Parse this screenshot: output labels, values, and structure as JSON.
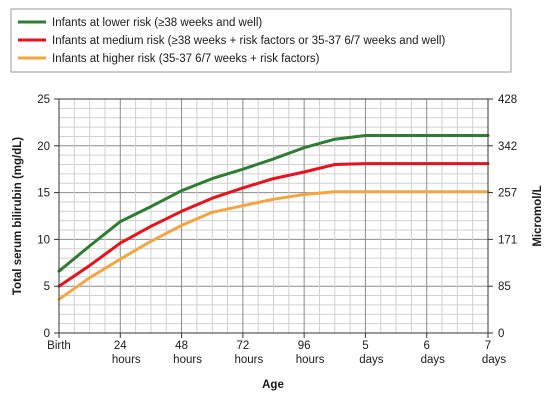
{
  "chart_data": {
    "type": "line",
    "x_categories": [
      "Birth",
      "24 hours",
      "48 hours",
      "72 hours",
      "96 hours",
      "5 days",
      "6 days",
      "7 days"
    ],
    "x_tick_labels": [
      {
        "top": "Birth",
        "bottom": ""
      },
      {
        "top": "24",
        "bottom": "hours"
      },
      {
        "top": "48",
        "bottom": "hours"
      },
      {
        "top": "72",
        "bottom": "hours"
      },
      {
        "top": "96",
        "bottom": "hours"
      },
      {
        "top": "5",
        "bottom": "days"
      },
      {
        "top": "6",
        "bottom": "days"
      },
      {
        "top": "7",
        "bottom": "days"
      }
    ],
    "xlabel": "Age",
    "ylabel": "Total serum bilirubin (mg/dL)",
    "ylabel_right": "Micromol/L",
    "ylim": [
      0,
      25
    ],
    "y_ticks": [
      0,
      5,
      10,
      15,
      20,
      25
    ],
    "y_right_ticks": [
      "0",
      "85",
      "171",
      "257",
      "342",
      "428"
    ],
    "grid": true,
    "legend_position": "top",
    "series": [
      {
        "name": "Infants at lower risk (≥38 weeks and well)",
        "color": "#2e7d32",
        "x": [
          0,
          12,
          24,
          36,
          48,
          60,
          72,
          84,
          96,
          108,
          120,
          144,
          168
        ],
        "values": [
          6.6,
          9.3,
          11.9,
          13.5,
          15.2,
          16.5,
          17.5,
          18.6,
          19.8,
          20.7,
          21.1,
          21.1,
          21.1
        ]
      },
      {
        "name": "Infants at medium risk (≥38 weeks + risk factors or 35-37 6/7 weeks and well)",
        "color": "#e8121c",
        "x": [
          0,
          12,
          24,
          36,
          48,
          60,
          72,
          84,
          96,
          108,
          120,
          144,
          168
        ],
        "values": [
          5.0,
          7.2,
          9.6,
          11.4,
          13.0,
          14.4,
          15.5,
          16.5,
          17.2,
          18.0,
          18.1,
          18.1,
          18.1
        ]
      },
      {
        "name": "Infants at higher risk (35-37 6/7 weeks + risk factors)",
        "color": "#f5a540",
        "x": [
          0,
          12,
          24,
          36,
          48,
          60,
          72,
          84,
          96,
          108,
          120,
          144,
          168
        ],
        "values": [
          3.6,
          5.9,
          7.9,
          9.8,
          11.5,
          12.9,
          13.6,
          14.3,
          14.8,
          15.1,
          15.1,
          15.1,
          15.1
        ]
      }
    ]
  }
}
